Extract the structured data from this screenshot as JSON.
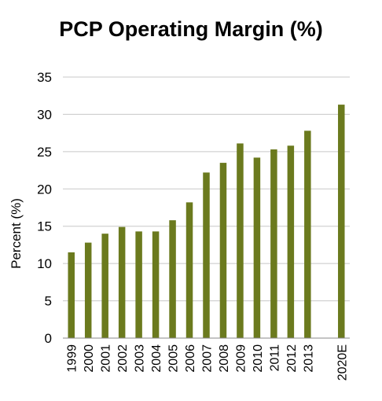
{
  "chart_data": {
    "type": "bar",
    "title": "PCP Operating Margin (%)",
    "xlabel": "",
    "ylabel": "Percent (%)",
    "categories": [
      "1999",
      "2000",
      "2001",
      "2002",
      "2003",
      "2004",
      "2005",
      "2006",
      "2007",
      "2008",
      "2009",
      "2010",
      "2011",
      "2012",
      "2013",
      "",
      "2020E"
    ],
    "values": [
      11.5,
      12.8,
      14.0,
      14.9,
      14.3,
      14.3,
      15.8,
      18.2,
      22.2,
      23.5,
      26.1,
      24.2,
      25.3,
      25.8,
      27.8,
      null,
      31.3
    ],
    "ylim": [
      0,
      35
    ],
    "yticks": [
      0,
      5,
      10,
      15,
      20,
      25,
      30,
      35
    ],
    "grid": true,
    "legend": "none",
    "bar_color": "#6b7a1e"
  }
}
